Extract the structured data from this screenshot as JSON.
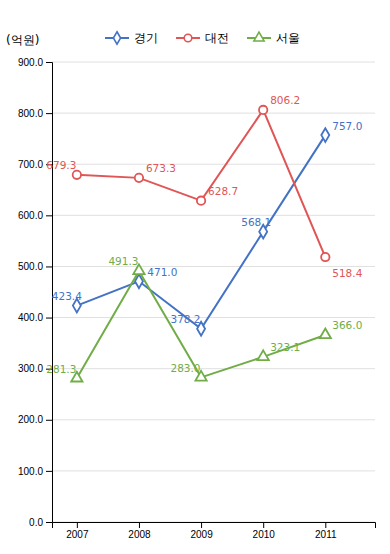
{
  "chart_data": {
    "type": "line",
    "ylabel": "(억원)",
    "x": [
      2007,
      2008,
      2009,
      2010,
      2011
    ],
    "xlim": [
      2006.6,
      2011.8
    ],
    "xticks": [
      2007,
      2008,
      2009,
      2010,
      2011
    ],
    "ylim": [
      0,
      900
    ],
    "yticks": [
      {
        "value": 0,
        "label": "0.0"
      },
      {
        "value": 100,
        "label": "100.0"
      },
      {
        "value": 200,
        "label": "200.0"
      },
      {
        "value": 300,
        "label": "300.0"
      },
      {
        "value": 400,
        "label": "400.0"
      },
      {
        "value": 500,
        "label": "500.0"
      },
      {
        "value": 600,
        "label": "600.0"
      },
      {
        "value": 700,
        "label": "700.0"
      },
      {
        "value": 800,
        "label": "800.0"
      },
      {
        "value": 900,
        "label": "900.0"
      }
    ],
    "grid": true,
    "legend": "top",
    "data_labels": true,
    "series": [
      {
        "name": "경기",
        "color": "#4472C4",
        "marker": "diamond",
        "values": [
          423.4,
          471.0,
          378.2,
          568.1,
          757.0
        ],
        "value_labels": [
          "423.4",
          "471.0",
          "378.2",
          "568.1",
          "757.0"
        ]
      },
      {
        "name": "대전",
        "color": "#E05555",
        "marker": "circle",
        "values": [
          679.3,
          673.3,
          628.7,
          806.2,
          518.4
        ],
        "value_labels": [
          "679.3",
          "673.3",
          "628.7",
          "806.2",
          "518.4"
        ]
      },
      {
        "name": "서울",
        "color": "#70AD47",
        "marker": "triangle",
        "values": [
          281.3,
          491.3,
          283.0,
          323.1,
          366.0
        ],
        "value_labels": [
          "281.3",
          "491.3",
          "283.0",
          "323.1",
          "366.0"
        ]
      }
    ]
  }
}
